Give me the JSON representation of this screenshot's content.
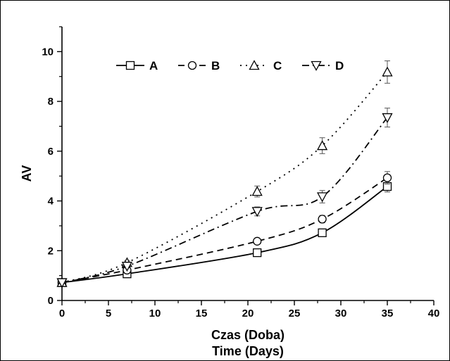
{
  "chart_data": {
    "type": "line",
    "title": "",
    "xlabel": "Czas (Doba)",
    "xlabel2": "Time (Days)",
    "ylabel": "AV",
    "xlim": [
      0,
      40
    ],
    "ylim": [
      0,
      11
    ],
    "xticks": [
      0,
      5,
      10,
      15,
      20,
      25,
      30,
      35,
      40
    ],
    "yticks": [
      0,
      2,
      4,
      6,
      8,
      10
    ],
    "x": [
      0,
      7,
      21,
      28,
      35
    ],
    "legend_position": "top",
    "grid": false,
    "series": [
      {
        "name": "A",
        "marker": "square",
        "dash": "solid",
        "values": [
          0.72,
          1.07,
          1.92,
          2.72,
          4.58
        ],
        "errors": [
          0,
          0.05,
          0.08,
          0.12,
          0.22
        ]
      },
      {
        "name": "B",
        "marker": "circle",
        "dash": "dashed",
        "values": [
          0.72,
          1.22,
          2.38,
          3.27,
          4.93
        ],
        "errors": [
          0,
          0.06,
          0.08,
          0.15,
          0.25
        ]
      },
      {
        "name": "C",
        "marker": "triangle-up",
        "dash": "dotted",
        "values": [
          0.72,
          1.52,
          4.38,
          6.22,
          9.18
        ],
        "errors": [
          0,
          0.08,
          0.22,
          0.32,
          0.45
        ]
      },
      {
        "name": "D",
        "marker": "triangle-down",
        "dash": "dash-dot",
        "values": [
          0.72,
          1.38,
          3.58,
          4.17,
          7.35
        ],
        "errors": [
          0,
          0.07,
          0.18,
          0.25,
          0.38
        ]
      }
    ]
  }
}
